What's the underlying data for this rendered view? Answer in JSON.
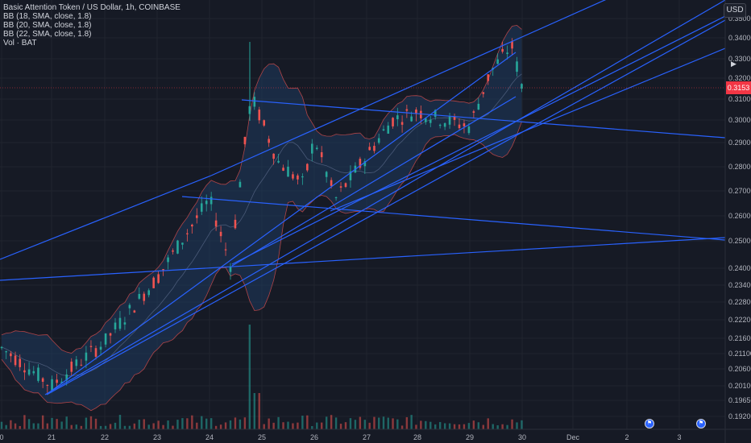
{
  "legend": {
    "title": "Basic Attention Token / US Dollar, 1h, COINBASE",
    "bb1": "BB (18, SMA, close, 1.8)",
    "bb2": "BB (20, SMA, close, 1.8)",
    "bb3": "BB (22, SMA, close, 1.8)",
    "vol": "Vol · BAT"
  },
  "currency": "USD",
  "last_price_label": "0.3153",
  "y_axis_labels": [
    "0.35000",
    "0.34000",
    "0.33000",
    "0.32000",
    "0.31000",
    "0.30000",
    "0.29000",
    "0.28000",
    "0.27000",
    "0.26000",
    "0.25000",
    "0.24000",
    "0.23400",
    "0.22800",
    "0.22200",
    "0.21600",
    "0.21100",
    "0.20600",
    "0.20100",
    "0.19650",
    "0.19200"
  ],
  "x_axis_labels": [
    "0",
    "21",
    "22",
    "23",
    "24",
    "25",
    "26",
    "27",
    "28",
    "29",
    "30",
    "Dec",
    "2",
    "3"
  ],
  "colors": {
    "background": "#161a25",
    "up": "#26a69a",
    "down": "#ef5350",
    "trendline": "#2962ff",
    "band_fill": "#1f3a5f",
    "price_tag": "#f23645"
  },
  "icons": [
    "event-flag-icon",
    "event-flag-icon"
  ],
  "chart_data": {
    "type": "candlestick",
    "symbol": "BAT/USD",
    "interval": "1h",
    "exchange": "COINBASE",
    "y_scale": "log",
    "approx_close_path": [
      {
        "day": "20",
        "price": 0.212
      },
      {
        "day": "21",
        "price": 0.2
      },
      {
        "day": "22",
        "price": 0.214
      },
      {
        "day": "23",
        "price": 0.236
      },
      {
        "day": "24",
        "price": 0.266
      },
      {
        "day": "24.4",
        "price": 0.241
      },
      {
        "day": "24.8",
        "price": 0.311
      },
      {
        "day": "25.3",
        "price": 0.282
      },
      {
        "day": "25.8",
        "price": 0.272
      },
      {
        "day": "26",
        "price": 0.292
      },
      {
        "day": "26.4",
        "price": 0.266
      },
      {
        "day": "27",
        "price": 0.284
      },
      {
        "day": "27.5",
        "price": 0.3
      },
      {
        "day": "28",
        "price": 0.304
      },
      {
        "day": "28.5",
        "price": 0.3
      },
      {
        "day": "29",
        "price": 0.297
      },
      {
        "day": "29.4",
        "price": 0.323
      },
      {
        "day": "29.8",
        "price": 0.336
      },
      {
        "day": "30",
        "price": 0.315
      }
    ],
    "volume_spike_day": "24.8"
  }
}
